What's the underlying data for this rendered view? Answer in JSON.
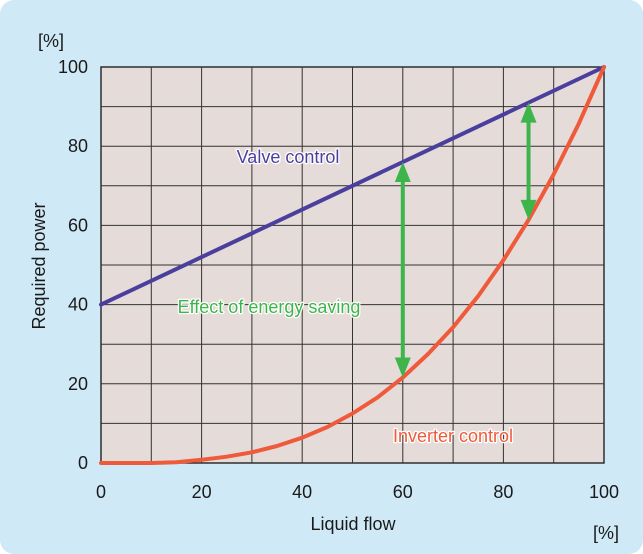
{
  "chart_data": {
    "type": "line",
    "xlabel": "Liquid flow",
    "ylabel": "Required power",
    "x_unit": "[%]",
    "y_unit": "[%]",
    "xlim": [
      0,
      100
    ],
    "ylim": [
      0,
      100
    ],
    "x_ticks": [
      0,
      20,
      40,
      60,
      80,
      100
    ],
    "y_ticks": [
      0,
      20,
      40,
      60,
      80,
      100
    ],
    "grid": true,
    "series": [
      {
        "name": "Valve control",
        "color": "#4b3f9e",
        "x": [
          0,
          100
        ],
        "y": [
          40,
          100
        ]
      },
      {
        "name": "Inverter control",
        "color": "#ee5a3a",
        "x": [
          0,
          10,
          15,
          20,
          25,
          30,
          35,
          40,
          45,
          50,
          55,
          60,
          65,
          70,
          75,
          80,
          85,
          90,
          95,
          100
        ],
        "y": [
          0,
          0,
          0.2,
          0.8,
          1.6,
          2.7,
          4.3,
          6.4,
          9.1,
          12.5,
          16.6,
          21.6,
          27.5,
          34.3,
          42.2,
          51.2,
          61.4,
          72.9,
          85.7,
          100
        ]
      }
    ],
    "annotations": [
      {
        "text": "Effect of energy saving",
        "color": "#3db54a"
      }
    ],
    "arrows": [
      {
        "x": 60,
        "y_from": 76,
        "y_to": 21.6,
        "color": "#3db54a"
      },
      {
        "x": 85,
        "y_from": 91,
        "y_to": 61.4,
        "color": "#3db54a"
      }
    ],
    "plot_background": "#e5dbd8"
  }
}
